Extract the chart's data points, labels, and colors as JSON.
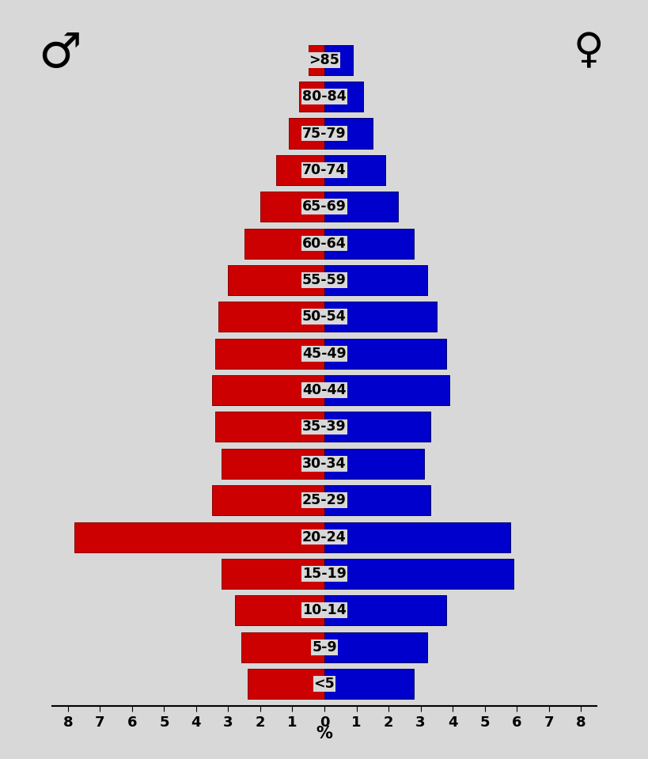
{
  "age_groups": [
    "<5",
    "5-9",
    "10-14",
    "15-19",
    "20-24",
    "25-29",
    "30-34",
    "35-39",
    "40-44",
    "45-49",
    "50-54",
    "55-59",
    "60-64",
    "65-69",
    "70-74",
    "75-79",
    "80-84",
    ">85"
  ],
  "male": [
    2.4,
    2.6,
    2.8,
    3.2,
    7.8,
    3.5,
    3.2,
    3.4,
    3.5,
    3.4,
    3.3,
    3.0,
    2.5,
    2.0,
    1.5,
    1.1,
    0.8,
    0.5
  ],
  "female": [
    2.8,
    3.2,
    3.8,
    5.9,
    5.8,
    3.3,
    3.1,
    3.3,
    3.9,
    3.8,
    3.5,
    3.2,
    2.8,
    2.3,
    1.9,
    1.5,
    1.2,
    0.9
  ],
  "male_color": "#CC0000",
  "female_color": "#0000CC",
  "male_edge_color": "#880000",
  "female_edge_color": "#000066",
  "background_color": "#D8D8D8",
  "xlim": 8.5,
  "male_symbol": "♂",
  "female_symbol": "♀",
  "xticks": [
    0,
    1,
    2,
    3,
    4,
    5,
    6,
    7,
    8
  ]
}
